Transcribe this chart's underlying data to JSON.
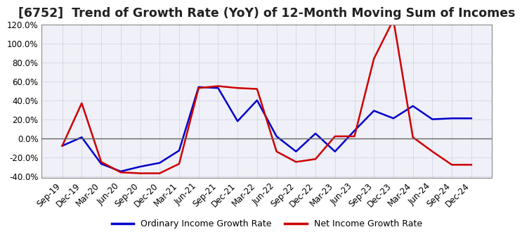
{
  "title": "[6752]  Trend of Growth Rate (YoY) of 12-Month Moving Sum of Incomes",
  "title_fontsize": 12.5,
  "ylim": [
    -0.42,
    0.135
  ],
  "yticks": [
    -0.4,
    -0.2,
    0.0,
    0.2,
    0.4,
    0.6,
    0.8,
    1.0,
    1.2
  ],
  "background_color": "#ffffff",
  "plot_bg_color": "#f0f0f8",
  "grid_color": "#aaaacc",
  "x_labels": [
    "Sep-19",
    "Dec-19",
    "Mar-20",
    "Jun-20",
    "Sep-20",
    "Dec-20",
    "Mar-21",
    "Jun-21",
    "Sep-21",
    "Dec-21",
    "Mar-22",
    "Jun-22",
    "Sep-22",
    "Dec-22",
    "Mar-23",
    "Jun-23",
    "Sep-23",
    "Dec-23",
    "Mar-24",
    "Jun-24",
    "Sep-24",
    "Dec-24"
  ],
  "ordinary_income": [
    -0.08,
    0.01,
    -0.27,
    -0.35,
    -0.3,
    -0.26,
    -0.13,
    0.54,
    0.53,
    0.18,
    0.4,
    0.02,
    -0.14,
    0.05,
    -0.14,
    0.08,
    0.29,
    0.21,
    0.34,
    0.2,
    0.21,
    0.21
  ],
  "net_income": [
    -0.08,
    0.37,
    -0.25,
    -0.36,
    -0.37,
    -0.37,
    -0.27,
    0.53,
    0.55,
    0.53,
    0.52,
    -0.14,
    -0.25,
    -0.22,
    0.02,
    0.02,
    0.84,
    1.25,
    0.01,
    -0.14,
    -0.28,
    -0.28
  ],
  "ordinary_color": "#0000cc",
  "net_color": "#cc0000",
  "line_width": 1.8,
  "legend_labels": [
    "Ordinary Income Growth Rate",
    "Net Income Growth Rate"
  ],
  "tick_fontsize": 8.5,
  "legend_fontsize": 9
}
